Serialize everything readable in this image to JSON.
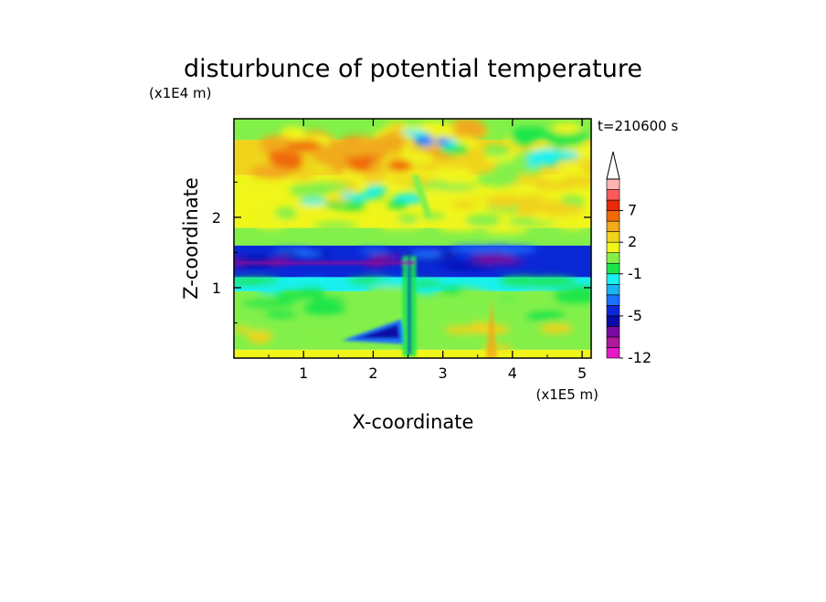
{
  "chart_data": {
    "type": "heatmap",
    "title": "disturbunce of potential temperature",
    "time_label": "t=210600 s",
    "xlabel": "X-coordinate",
    "ylabel": "Z-coordinate",
    "x_scale_label": "(x1E5 m)",
    "y_scale_label": "(x1E4 m)",
    "xlim": [
      0,
      5.13
    ],
    "ylim": [
      0,
      3.4
    ],
    "x_ticks": [
      "1",
      "2",
      "3",
      "4",
      "5"
    ],
    "x_tick_values": [
      1,
      2,
      3,
      4,
      5
    ],
    "y_ticks": [
      "1",
      "2"
    ],
    "y_tick_values": [
      1,
      2
    ],
    "colorbar": {
      "levels_bottom_to_top": [
        -12,
        -10,
        -8,
        -6,
        -5,
        -4,
        -3,
        -2,
        -1,
        0,
        1,
        2,
        3,
        5,
        7,
        9,
        11
      ],
      "colors_bottom_to_top": [
        "#e619c8",
        "#b0189c",
        "#7a0aa0",
        "#0a0aa6",
        "#0a28d6",
        "#1a70ff",
        "#19b4f0",
        "#19f0ef",
        "#1ae64a",
        "#83f04a",
        "#f0f51a",
        "#f0d31a",
        "#f0aa1a",
        "#f06a0a",
        "#e62a0a",
        "#ff5a5a",
        "#ffb4b4"
      ],
      "labels": [
        "-12",
        "-5",
        "-1",
        "2",
        "7"
      ],
      "label_values": [
        -12,
        -5,
        -1,
        2,
        7
      ],
      "extend": "max"
    },
    "field_bands": [
      {
        "z": [
          0.0,
          0.12
        ],
        "value": 1.0
      },
      {
        "z": [
          0.12,
          0.5
        ],
        "value": 0.5
      },
      {
        "z": [
          0.5,
          0.95
        ],
        "value": 0.4
      },
      {
        "z": [
          0.95,
          1.15
        ],
        "value": -1.5
      },
      {
        "z": [
          1.15,
          1.6
        ],
        "value": -5.0
      },
      {
        "z": [
          1.6,
          1.85
        ],
        "value": 0.3
      },
      {
        "z": [
          1.85,
          2.6
        ],
        "value": 1.5
      },
      {
        "z": [
          2.6,
          3.1
        ],
        "value": 2.5
      },
      {
        "z": [
          3.1,
          3.4
        ],
        "value": 0.6
      }
    ]
  }
}
